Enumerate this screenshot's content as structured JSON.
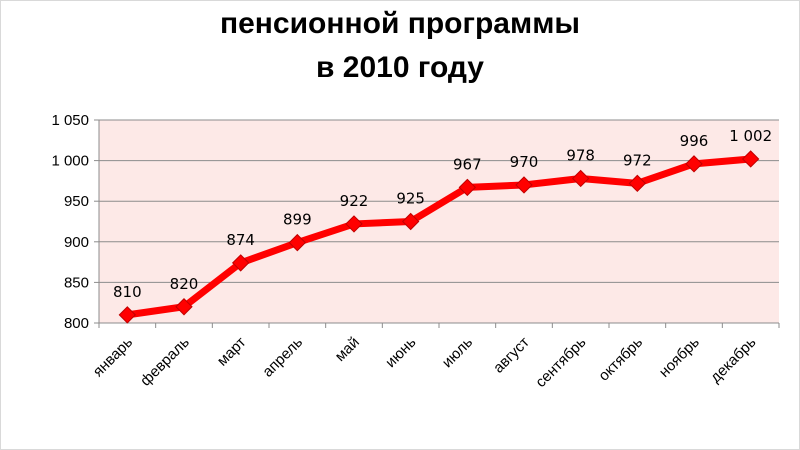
{
  "colors": {
    "plot_background": "#fde9e7",
    "line": "#ff0000",
    "marker": "#ff0000",
    "gridline": "#8c8c8c"
  },
  "chart_data": {
    "type": "line",
    "title_lines": [
      "пенсионной программы",
      "в 2010 году"
    ],
    "categories": [
      "январь",
      "февраль",
      "март",
      "апрель",
      "май",
      "июнь",
      "июль",
      "август",
      "сентябрь",
      "октябрь",
      "ноябрь",
      "декабрь"
    ],
    "series": [
      {
        "values": [
          810,
          820,
          874,
          899,
          922,
          925,
          967,
          970,
          978,
          972,
          996,
          1002
        ],
        "data_labels": [
          "810",
          "820",
          "874",
          "899",
          "922",
          "925",
          "967",
          "970",
          "978",
          "972",
          "996",
          "1 002"
        ],
        "marker": "diamond"
      }
    ],
    "ylim": [
      800,
      1050
    ],
    "yticks": [
      800,
      850,
      900,
      950,
      1000,
      1050
    ],
    "ytick_labels": [
      "800",
      "850",
      "900",
      "950",
      "1 000",
      "1 050"
    ],
    "grid": true,
    "legend": "none"
  }
}
